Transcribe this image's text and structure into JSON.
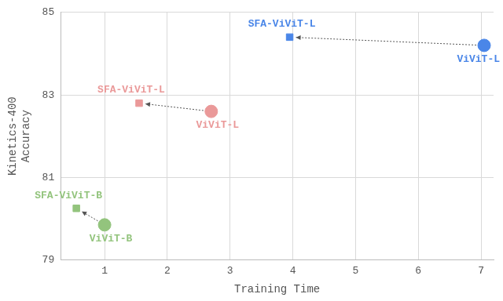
{
  "chart_data": {
    "type": "scatter",
    "xlabel": "Training Time",
    "ylabel": "Kinetics-400 Accuracy",
    "xlim": [
      0.3,
      7.2
    ],
    "xticks": [
      1,
      2,
      3,
      4,
      5,
      6,
      7
    ],
    "ylim": [
      79,
      85
    ],
    "yticks": [
      79,
      81,
      83,
      85
    ],
    "grid": true,
    "series": [
      {
        "color": "#93c47d",
        "point_labels": [
          "ViViT-B",
          "SFA-ViViT-B"
        ],
        "markers": [
          "circle",
          "square"
        ],
        "x": [
          1.0,
          0.55
        ],
        "values": [
          79.85,
          80.25
        ]
      },
      {
        "color": "#ea9999",
        "point_labels": [
          "ViViT-L",
          "SFA-ViViT-L"
        ],
        "markers": [
          "circle",
          "square"
        ],
        "x": [
          2.7,
          1.55
        ],
        "values": [
          82.6,
          82.8
        ]
      },
      {
        "color": "#4a86e8",
        "point_labels": [
          "ViViT-L",
          "SFA-ViViT-L"
        ],
        "markers": [
          "circle",
          "square"
        ],
        "x": [
          7.05,
          3.95
        ],
        "values": [
          84.2,
          84.4
        ]
      }
    ]
  }
}
